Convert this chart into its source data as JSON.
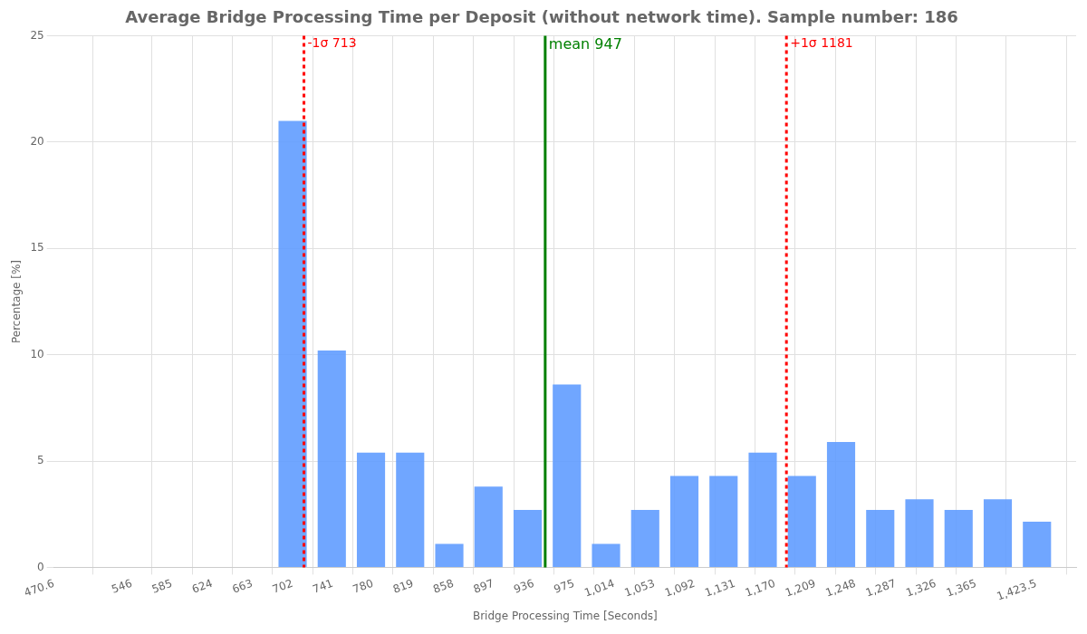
{
  "chart_data": {
    "type": "histogram",
    "title": "Average Bridge Processing Time per Deposit (without network time). Sample number: 186",
    "xlabel": "Bridge Processing Time [Seconds]",
    "ylabel": "Percentage [%]",
    "bins": [
      683,
      721,
      759,
      797,
      835,
      873,
      911,
      949,
      987,
      1025,
      1063,
      1101,
      1139,
      1177,
      1215,
      1253,
      1291,
      1329,
      1367,
      1405,
      1443
    ],
    "values": [
      21.0,
      10.2,
      5.4,
      5.4,
      1.1,
      3.8,
      2.7,
      8.6,
      1.1,
      2.7,
      4.3,
      4.3,
      5.4,
      4.3,
      5.9,
      2.7,
      3.2,
      2.7,
      3.2,
      2.15
    ],
    "color": "#619cff",
    "xlim": [
      470.6,
      1462
    ],
    "xticks": [
      470.6,
      546,
      585,
      624,
      663,
      702,
      741,
      780,
      819,
      858,
      897,
      936,
      975,
      {
        "value": 1014,
        "label": "1,014"
      },
      {
        "value": 1053,
        "label": "1,053"
      },
      {
        "value": 1092,
        "label": "1,092"
      },
      {
        "value": 1131,
        "label": "1,131"
      },
      {
        "value": 1170,
        "label": "1,170"
      },
      {
        "value": 1209,
        "label": "1,209"
      },
      {
        "value": 1248,
        "label": "1,248"
      },
      {
        "value": 1287,
        "label": "1,287"
      },
      {
        "value": 1326,
        "label": "1,326"
      },
      {
        "value": 1365,
        "label": "1,365"
      },
      {
        "value": 1423.5,
        "label": "1,423.5"
      }
    ],
    "ylim": [
      0,
      25
    ],
    "yticks": [
      0,
      5,
      10,
      15,
      20,
      25
    ],
    "grid": true,
    "legend": false,
    "ref_lines": [
      {
        "axis": "x",
        "value": 713,
        "label": "-1σ 713",
        "color": "#ff0000",
        "line_style": "dotted"
      },
      {
        "axis": "x",
        "value": 947,
        "label": "mean 947",
        "color": "#008000",
        "line_style": "solid"
      },
      {
        "axis": "x",
        "value": 1181,
        "label": "+1σ 1181",
        "color": "#ff0000",
        "line_style": "dotted"
      }
    ]
  }
}
